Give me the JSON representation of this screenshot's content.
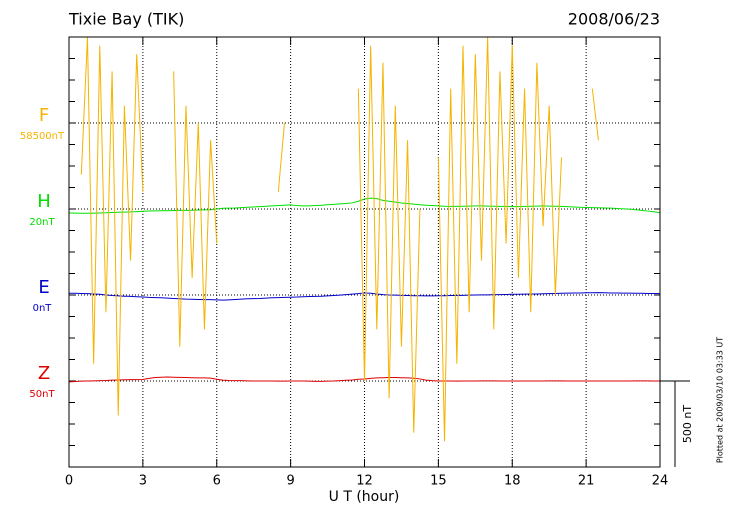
{
  "chart_data": {
    "type": "line",
    "title": "Tixie Bay (TIK)",
    "date": "2008/06/23",
    "xlabel": "U T (hour)",
    "footnote": "Plotted at 2009/03/10 03:33 UT",
    "xlim": [
      0,
      24
    ],
    "xticks": [
      0,
      3,
      6,
      9,
      12,
      15,
      18,
      21,
      24
    ],
    "xgrid": [
      3,
      6,
      9,
      12,
      15,
      18,
      21
    ],
    "ylim": [
      0,
      2500
    ],
    "yticks": [
      0,
      125,
      250,
      375,
      500,
      625,
      750,
      875,
      1000,
      1125,
      1250,
      1375,
      1500,
      1625,
      1750,
      1875,
      2000,
      2125,
      2250,
      2375,
      2500
    ],
    "grid_y": [
      500,
      1000,
      1500,
      2000
    ],
    "scale_bar": {
      "label": "500 nT",
      "from": 0,
      "to": 500
    },
    "x": [
      0,
      0.25,
      0.5,
      0.75,
      1,
      1.25,
      1.5,
      1.75,
      2,
      2.25,
      2.5,
      2.75,
      3,
      3.25,
      3.5,
      3.75,
      4,
      4.25,
      4.5,
      4.75,
      5,
      5.25,
      5.5,
      5.75,
      6,
      6.25,
      6.5,
      6.75,
      7,
      7.25,
      7.5,
      7.75,
      8,
      8.25,
      8.5,
      8.75,
      9,
      9.25,
      9.5,
      9.75,
      10,
      10.25,
      10.5,
      10.75,
      11,
      11.25,
      11.5,
      11.75,
      12,
      12.25,
      12.5,
      12.75,
      13,
      13.25,
      13.5,
      13.75,
      14,
      14.25,
      14.5,
      14.75,
      15,
      15.25,
      15.5,
      15.75,
      16,
      16.25,
      16.5,
      16.75,
      17,
      17.25,
      17.5,
      17.75,
      18,
      18.25,
      18.5,
      18.75,
      19,
      19.25,
      19.5,
      19.75,
      20,
      20.25,
      20.5,
      20.75,
      21,
      21.25,
      21.5,
      21.75,
      22,
      22.25,
      22.5,
      22.75,
      23,
      23.25,
      23.5,
      23.75,
      24
    ],
    "series": [
      {
        "name": "F",
        "baseline_label": "58500nT",
        "baseline": 2000,
        "color": "#f5b400",
        "values": [
          null,
          null,
          1700,
          2500,
          600,
          2450,
          900,
          2300,
          300,
          2100,
          1200,
          2400,
          1600,
          null,
          null,
          null,
          null,
          2300,
          700,
          2100,
          1100,
          2000,
          800,
          1900,
          1300,
          null,
          null,
          null,
          null,
          null,
          null,
          null,
          null,
          null,
          1600,
          2000,
          null,
          null,
          null,
          null,
          null,
          null,
          null,
          null,
          null,
          null,
          null,
          2200,
          500,
          2450,
          800,
          2350,
          400,
          2100,
          700,
          1900,
          200,
          1500,
          null,
          null,
          1800,
          150,
          2200,
          600,
          2450,
          900,
          2400,
          1200,
          2500,
          800,
          2300,
          1300,
          2450,
          1100,
          2200,
          900,
          2350,
          1400,
          2100,
          1000,
          1800,
          null,
          null,
          null,
          null,
          2200,
          1900,
          null,
          null,
          null,
          null,
          null,
          null,
          null,
          null,
          null,
          null
        ]
      },
      {
        "name": "H",
        "baseline_label": "20nT",
        "baseline": 1500,
        "color": "#00e000",
        "values": [
          1477,
          1476,
          1475,
          1475,
          1476,
          1477,
          1478,
          1480,
          1481,
          1482,
          1483,
          1485,
          1487,
          1488,
          1489,
          1490,
          1490,
          1491,
          1492,
          1492,
          1493,
          1494,
          1495,
          1496,
          1500,
          1504,
          1505,
          1506,
          1508,
          1510,
          1512,
          1514,
          1516,
          1518,
          1520,
          1522,
          1524,
          1520,
          1518,
          1518,
          1520,
          1522,
          1525,
          1527,
          1530,
          1532,
          1536,
          1545,
          1558,
          1563,
          1560,
          1550,
          1545,
          1540,
          1535,
          1532,
          1528,
          1525,
          1522,
          1520,
          1518,
          1516,
          1515,
          1515,
          1516,
          1517,
          1518,
          1518,
          1517,
          1516,
          1515,
          1515,
          1514,
          1514,
          1515,
          1516,
          1517,
          1518,
          1517,
          1516,
          1515,
          1514,
          1512,
          1510,
          1509,
          1508,
          1507,
          1506,
          1505,
          1503,
          1501,
          1499,
          1496,
          1492,
          1488,
          1484,
          1478
        ]
      },
      {
        "name": "E",
        "baseline_label": "0nT",
        "baseline": 1000,
        "color": "#0000cc",
        "values": [
          1010,
          1010,
          1009,
          1008,
          1006,
          1004,
          1000,
          997,
          995,
          993,
          992,
          990,
          988,
          986,
          985,
          984,
          982,
          980,
          978,
          976,
          975,
          974,
          973,
          973,
          972,
          970,
          972,
          974,
          976,
          978,
          979,
          980,
          982,
          984,
          985,
          986,
          987,
          988,
          990,
          991,
          992,
          993,
          995,
          997,
          999,
          1002,
          1005,
          1008,
          1012,
          1010,
          1006,
          1002,
          1000,
          999,
          998,
          997,
          996,
          996,
          995,
          995,
          996,
          996,
          997,
          997,
          998,
          999,
          1000,
          1001,
          1001,
          1002,
          1002,
          1003,
          1004,
          1004,
          1005,
          1006,
          1006,
          1007,
          1008,
          1009,
          1010,
          1011,
          1012,
          1012,
          1013,
          1013,
          1014,
          1013,
          1012,
          1012,
          1011,
          1011,
          1010,
          1010,
          1009,
          1009,
          1008
        ]
      },
      {
        "name": "Z",
        "baseline_label": "50nT",
        "baseline": 500,
        "color": "#dd0000",
        "values": [
          495,
          497,
          499,
          500,
          501,
          502,
          503,
          505,
          506,
          507,
          508,
          508,
          509,
          515,
          520,
          522,
          523,
          522,
          521,
          520,
          519,
          518,
          518,
          517,
          510,
          505,
          503,
          502,
          502,
          501,
          500,
          500,
          500,
          500,
          499,
          499,
          500,
          500,
          500,
          499,
          498,
          498,
          499,
          500,
          502,
          504,
          506,
          510,
          512,
          515,
          518,
          519,
          520,
          520,
          519,
          518,
          516,
          512,
          505,
          502,
          500,
          500,
          500,
          499,
          500,
          500,
          500,
          501,
          501,
          501,
          500,
          500,
          500,
          500,
          500,
          500,
          500,
          500,
          501,
          501,
          501,
          500,
          500,
          500,
          500,
          500,
          500,
          500,
          500,
          500,
          500,
          500,
          501,
          501,
          501,
          500,
          500
        ]
      }
    ]
  }
}
